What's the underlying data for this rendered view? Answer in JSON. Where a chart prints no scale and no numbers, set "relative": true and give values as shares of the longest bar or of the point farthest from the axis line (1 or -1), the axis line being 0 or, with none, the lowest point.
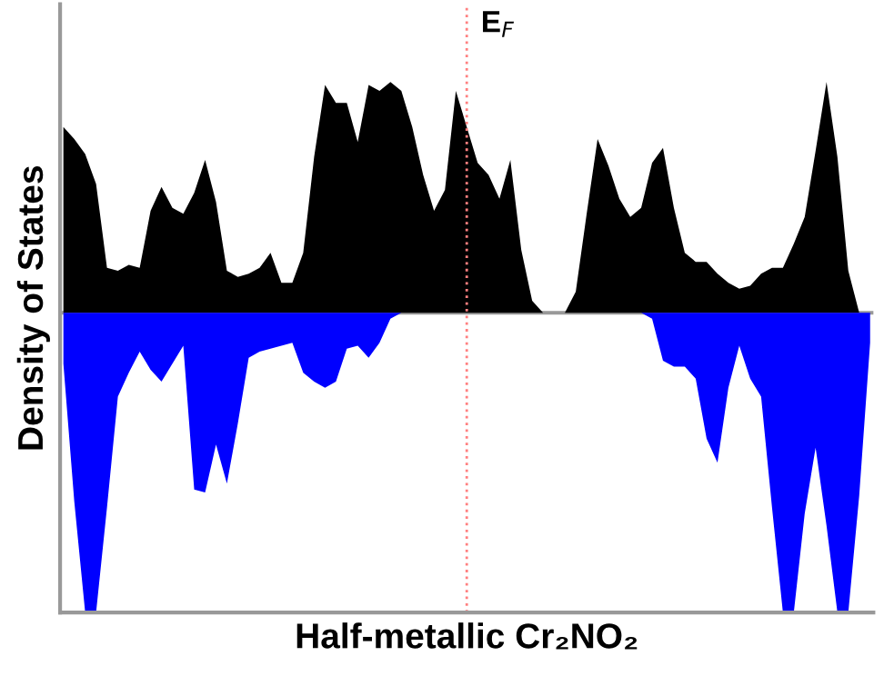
{
  "chart_data": {
    "type": "area",
    "relative": true,
    "xlabel": "Half-metallic Cr₂NO₂",
    "ylabel": "Density of States",
    "categories": [
      null,
      null,
      null,
      null,
      null,
      null,
      null,
      null,
      null,
      null,
      null,
      null,
      null,
      null,
      null,
      null,
      null,
      null,
      null,
      null,
      null,
      null,
      null,
      null,
      null,
      null,
      null,
      null,
      null,
      null,
      null,
      null,
      null,
      null,
      null,
      null,
      null,
      null,
      null,
      null,
      null,
      null,
      null,
      null,
      null,
      null,
      null,
      null,
      null,
      null,
      null,
      null,
      null,
      null,
      null,
      null,
      null,
      null,
      null,
      null,
      null,
      null,
      null,
      null,
      null,
      null,
      null,
      null,
      null,
      null,
      null,
      null,
      null,
      null,
      null
    ],
    "series": [
      {
        "color": "#000000",
        "values": [
          0.62,
          0.58,
          0.53,
          0.43,
          0.15,
          0.14,
          0.16,
          0.15,
          0.34,
          0.42,
          0.35,
          0.33,
          0.4,
          0.51,
          0.37,
          0.14,
          0.12,
          0.13,
          0.15,
          0.2,
          0.1,
          0.1,
          0.2,
          0.52,
          0.76,
          0.7,
          0.7,
          0.57,
          0.76,
          0.74,
          0.77,
          0.74,
          0.62,
          0.46,
          0.34,
          0.41,
          0.74,
          0.62,
          0.5,
          0.46,
          0.38,
          0.51,
          0.21,
          0.04,
          0,
          0,
          0,
          0.07,
          0.33,
          0.58,
          0.49,
          0.38,
          0.32,
          0.35,
          0.5,
          0.55,
          0.35,
          0.2,
          0.17,
          0.17,
          0.13,
          0.1,
          0.08,
          0.09,
          0.13,
          0.15,
          0.15,
          0.23,
          0.32,
          0.54,
          0.77,
          0.52,
          0.14,
          0,
          0
        ]
      },
      {
        "color": "#0000ff",
        "values": [
          -0.17,
          -0.63,
          -1,
          -1,
          -0.65,
          -0.28,
          -0.2,
          -0.13,
          -0.19,
          -0.23,
          -0.17,
          -0.11,
          -0.59,
          -0.6,
          -0.44,
          -0.57,
          -0.37,
          -0.15,
          -0.13,
          -0.12,
          -0.11,
          -0.1,
          -0.2,
          -0.23,
          -0.25,
          -0.23,
          -0.12,
          -0.11,
          -0.15,
          -0.1,
          -0.02,
          0,
          0,
          0,
          0,
          0,
          0,
          0,
          0,
          0,
          0,
          0,
          0,
          0,
          0,
          0,
          0,
          0,
          0,
          0,
          0,
          0,
          0,
          0,
          -0.02,
          -0.16,
          -0.18,
          -0.18,
          -0.22,
          -0.42,
          -0.5,
          -0.25,
          -0.11,
          -0.22,
          -0.28,
          -0.65,
          -1,
          -1,
          -0.67,
          -0.45,
          -0.71,
          -1,
          -1,
          -0.61,
          -0.1
        ]
      }
    ],
    "annotations": [
      "E$_{F}$"
    ]
  }
}
